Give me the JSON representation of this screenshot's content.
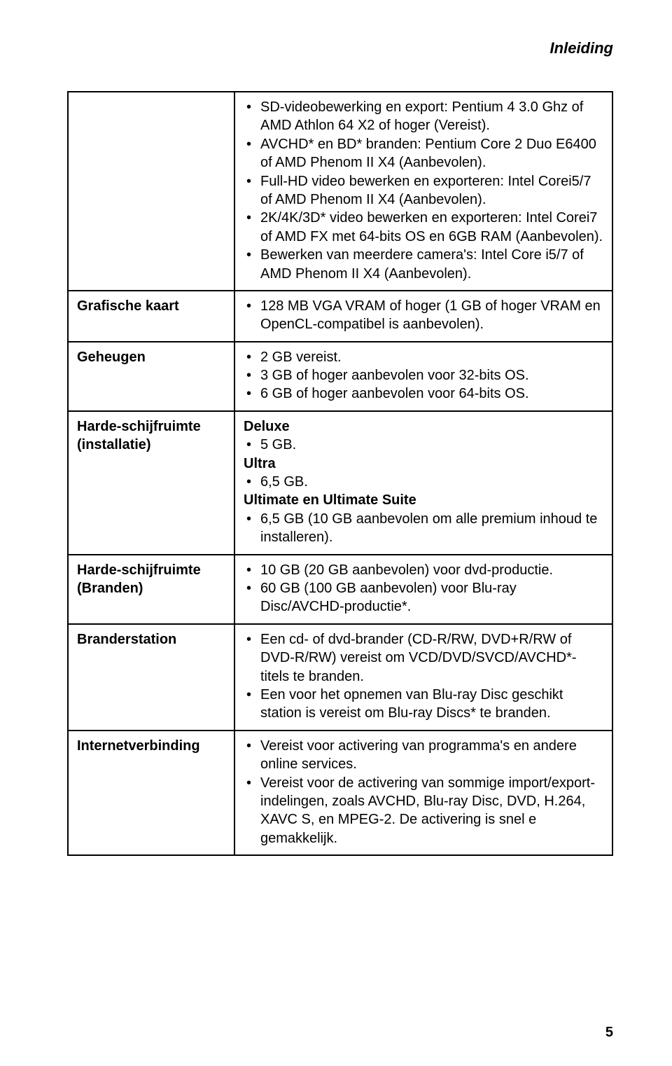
{
  "header": {
    "title": "Inleiding"
  },
  "page_number": "5",
  "rows": [
    {
      "label": "",
      "groups": [
        {
          "heading": "",
          "items": [
            "SD-videobewerking en export: Pentium 4 3.0 Ghz of AMD Athlon 64 X2 of hoger (Vereist).",
            "AVCHD* en BD* branden: Pentium Core 2 Duo E6400 of AMD Phenom II X4 (Aanbevolen).",
            "Full-HD video bewerken en exporteren: Intel Corei5/7 of AMD Phenom II X4 (Aanbevolen).",
            "2K/4K/3D* video bewerken en exporteren: Intel Corei7 of AMD FX met 64-bits OS en 6GB RAM (Aanbevolen).",
            "Bewerken van meerdere camera's: Intel Core i5/7 of AMD Phenom II X4 (Aanbevolen)."
          ]
        }
      ]
    },
    {
      "label": "Grafische kaart",
      "groups": [
        {
          "heading": "",
          "items": [
            "128 MB VGA VRAM of hoger (1 GB of hoger VRAM en OpenCL-compatibel is aanbevolen)."
          ]
        }
      ]
    },
    {
      "label": "Geheugen",
      "groups": [
        {
          "heading": "",
          "items": [
            "2 GB vereist.",
            "3 GB of hoger aanbevolen voor 32-bits OS.",
            "6 GB of hoger aanbevolen voor 64-bits OS."
          ]
        }
      ]
    },
    {
      "label": "Harde-schijfruimte (installatie)",
      "groups": [
        {
          "heading": "Deluxe",
          "items": [
            "5 GB."
          ]
        },
        {
          "heading": "Ultra",
          "items": [
            "6,5 GB."
          ]
        },
        {
          "heading": "Ultimate en Ultimate Suite",
          "items": [
            "6,5 GB (10 GB aanbevolen om alle premium inhoud te installeren)."
          ]
        }
      ]
    },
    {
      "label": "Harde-schijfruimte (Branden)",
      "groups": [
        {
          "heading": "",
          "items": [
            "10 GB (20 GB aanbevolen) voor dvd-productie.",
            "60 GB (100 GB aanbevolen) voor Blu-ray Disc/AVCHD-productie*."
          ]
        }
      ]
    },
    {
      "label": "Branderstation",
      "groups": [
        {
          "heading": "",
          "items": [
            "Een cd- of dvd-brander (CD-R/RW, DVD+R/RW of DVD-R/RW) vereist om VCD/DVD/SVCD/AVCHD*-titels te branden.",
            "Een voor het opnemen van Blu-ray Disc geschikt station is vereist om Blu-ray Discs* te branden."
          ]
        }
      ]
    },
    {
      "label": "Internetverbinding",
      "groups": [
        {
          "heading": "",
          "items": [
            "Vereist voor activering van programma's en andere online services.",
            "Vereist voor de activering van sommige import/export-indelingen, zoals AVCHD, Blu-ray Disc, DVD, H.264, XAVC S, en MPEG-2. De activering is snel e gemakkelijk."
          ]
        }
      ]
    }
  ]
}
